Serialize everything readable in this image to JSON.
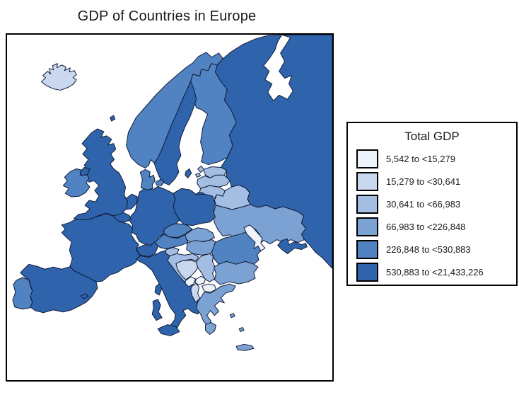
{
  "title": "GDP of Countries in Europe",
  "legend": {
    "title": "Total GDP",
    "items": [
      {
        "label": "5,542 to <15,279",
        "color": "#EDF2FB"
      },
      {
        "label": "15,279 to <30,641",
        "color": "#C9D7EF"
      },
      {
        "label": "30,641 to <66,983",
        "color": "#A4BDE2"
      },
      {
        "label": "66,983 to <226,848",
        "color": "#7CA2D3"
      },
      {
        "label": "226,848 to <530,883",
        "color": "#5182C1"
      },
      {
        "label": "530,883 to <21,433,226",
        "color": "#2F64AC"
      }
    ]
  },
  "map": {
    "background_color": "#FFFFFF",
    "frame_color": "#000000",
    "border_color": "#101C38",
    "countries": [
      {
        "key": "iceland",
        "name": "Iceland",
        "category": 2
      },
      {
        "key": "norway",
        "name": "Norway",
        "category": 5
      },
      {
        "key": "sweden",
        "name": "Sweden",
        "category": 6
      },
      {
        "key": "finland",
        "name": "Finland",
        "category": 5
      },
      {
        "key": "denmark",
        "name": "Denmark",
        "category": 5
      },
      {
        "key": "russia",
        "name": "Russia",
        "category": 6
      },
      {
        "key": "estonia",
        "name": "Estonia",
        "category": 3
      },
      {
        "key": "latvia",
        "name": "Latvia",
        "category": 3
      },
      {
        "key": "lithuania",
        "name": "Lithuania",
        "category": 3
      },
      {
        "key": "belarus",
        "name": "Belarus",
        "category": 3
      },
      {
        "key": "ukraine",
        "name": "Ukraine",
        "category": 4
      },
      {
        "key": "moldova",
        "name": "Moldova",
        "category": 1
      },
      {
        "key": "poland",
        "name": "Poland",
        "category": 6
      },
      {
        "key": "germany",
        "name": "Germany",
        "category": 6
      },
      {
        "key": "netherlands",
        "name": "Netherlands",
        "category": 6
      },
      {
        "key": "belgium",
        "name": "Belgium",
        "category": 6
      },
      {
        "key": "luxembourg",
        "name": "Luxembourg",
        "category": 4
      },
      {
        "key": "france",
        "name": "France",
        "category": 6
      },
      {
        "key": "united-kingdom",
        "name": "United Kingdom",
        "category": 6
      },
      {
        "key": "ireland",
        "name": "Ireland",
        "category": 5
      },
      {
        "key": "spain",
        "name": "Spain",
        "category": 6
      },
      {
        "key": "portugal",
        "name": "Portugal",
        "category": 5
      },
      {
        "key": "italy",
        "name": "Italy",
        "category": 6
      },
      {
        "key": "switzerland",
        "name": "Switzerland",
        "category": 6
      },
      {
        "key": "austria",
        "name": "Austria",
        "category": 5
      },
      {
        "key": "czechia",
        "name": "Czechia",
        "category": 5
      },
      {
        "key": "slovakia",
        "name": "Slovakia",
        "category": 4
      },
      {
        "key": "hungary",
        "name": "Hungary",
        "category": 4
      },
      {
        "key": "slovenia",
        "name": "Slovenia",
        "category": 3
      },
      {
        "key": "croatia",
        "name": "Croatia",
        "category": 3
      },
      {
        "key": "bosnia-herzegovina",
        "name": "Bosnia and Herzegovina",
        "category": 2
      },
      {
        "key": "serbia",
        "name": "Serbia",
        "category": 3
      },
      {
        "key": "montenegro",
        "name": "Montenegro",
        "category": 1
      },
      {
        "key": "kosovo",
        "name": "Kosovo",
        "category": 1
      },
      {
        "key": "north-macedonia",
        "name": "North Macedonia",
        "category": 1
      },
      {
        "key": "albania",
        "name": "Albania",
        "category": 2
      },
      {
        "key": "greece",
        "name": "Greece",
        "category": 4
      },
      {
        "key": "bulgaria",
        "name": "Bulgaria",
        "category": 4
      },
      {
        "key": "romania",
        "name": "Romania",
        "category": 5
      }
    ]
  },
  "chart_data": {
    "type": "choropleth",
    "title": "GDP of Countries in Europe",
    "legend_title": "Total GDP",
    "bins": [
      "5,542 to <15,279",
      "15,279 to <30,641",
      "30,641 to <66,983",
      "66,983 to <226,848",
      "226,848 to <530,883",
      "530,883 to <21,433,226"
    ],
    "region_bins": {
      "Iceland": 2,
      "Norway": 5,
      "Sweden": 6,
      "Finland": 5,
      "Denmark": 5,
      "Russia": 6,
      "Estonia": 3,
      "Latvia": 3,
      "Lithuania": 3,
      "Belarus": 3,
      "Ukraine": 4,
      "Moldova": 1,
      "Poland": 6,
      "Germany": 6,
      "Netherlands": 6,
      "Belgium": 6,
      "Luxembourg": 4,
      "France": 6,
      "United Kingdom": 6,
      "Ireland": 5,
      "Spain": 6,
      "Portugal": 5,
      "Italy": 6,
      "Switzerland": 6,
      "Austria": 5,
      "Czechia": 5,
      "Slovakia": 4,
      "Hungary": 4,
      "Slovenia": 3,
      "Croatia": 3,
      "Bosnia and Herzegovina": 2,
      "Serbia": 3,
      "Montenegro": 1,
      "Kosovo": 1,
      "North Macedonia": 1,
      "Albania": 2,
      "Greece": 4,
      "Bulgaria": 4,
      "Romania": 5
    }
  }
}
